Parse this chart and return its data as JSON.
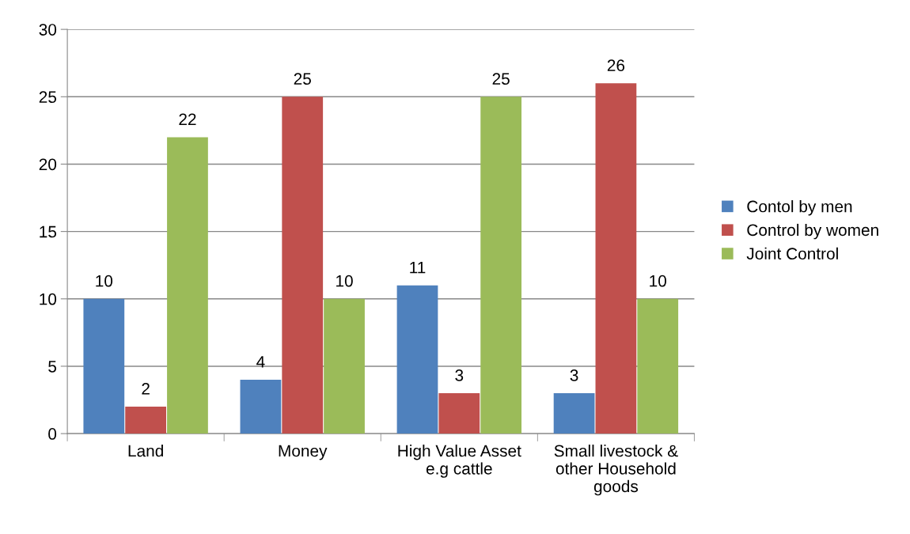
{
  "chart_data": {
    "type": "bar",
    "categories": [
      "Land",
      "Money",
      "High Value Asset\ne.g cattle",
      "Small livestock &\nother Household\ngoods"
    ],
    "series": [
      {
        "name": "Contol by men",
        "color": "#4f81bd",
        "values": [
          10,
          4,
          11,
          3
        ]
      },
      {
        "name": "Control by women",
        "color": "#c0504d",
        "values": [
          2,
          25,
          3,
          26
        ]
      },
      {
        "name": "Joint Control",
        "color": "#9bbb59",
        "values": [
          22,
          10,
          25,
          10
        ]
      }
    ],
    "ylim": [
      0,
      30
    ],
    "yticks": [
      0,
      5,
      10,
      15,
      20,
      25,
      30
    ],
    "grid": "y",
    "legend": "right",
    "data_labels": true
  }
}
